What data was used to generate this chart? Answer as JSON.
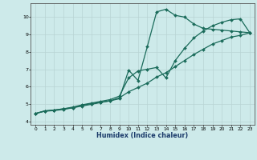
{
  "xlabel": "Humidex (Indice chaleur)",
  "bg_color": "#cdeaea",
  "grid_color_major": "#b8d4d4",
  "grid_color_minor": "#cde4e4",
  "line_color": "#1a6b5a",
  "xlim": [
    -0.5,
    23.5
  ],
  "ylim": [
    3.8,
    10.8
  ],
  "xticks": [
    0,
    1,
    2,
    3,
    4,
    5,
    6,
    7,
    8,
    9,
    10,
    11,
    12,
    13,
    14,
    15,
    16,
    17,
    18,
    19,
    20,
    21,
    22,
    23
  ],
  "yticks": [
    4,
    5,
    6,
    7,
    8,
    9,
    10
  ],
  "series1_x": [
    0,
    1,
    2,
    3,
    4,
    5,
    6,
    7,
    8,
    9,
    10,
    11,
    12,
    13,
    14,
    15,
    16,
    17,
    18,
    19,
    20,
    21,
    22,
    23
  ],
  "series1_y": [
    4.45,
    4.6,
    4.65,
    4.72,
    4.78,
    4.92,
    5.02,
    5.1,
    5.18,
    5.3,
    6.95,
    6.35,
    8.3,
    10.3,
    10.45,
    10.1,
    10.0,
    9.6,
    9.35,
    9.3,
    9.25,
    9.2,
    9.15,
    9.1
  ],
  "series2_x": [
    0,
    1,
    2,
    3,
    4,
    5,
    6,
    7,
    8,
    9,
    10,
    11,
    12,
    13,
    14,
    15,
    16,
    17,
    18,
    19,
    20,
    21,
    22,
    23
  ],
  "series2_y": [
    4.45,
    4.6,
    4.65,
    4.72,
    4.82,
    4.95,
    5.05,
    5.15,
    5.25,
    5.45,
    6.5,
    6.9,
    7.0,
    7.1,
    6.5,
    7.5,
    8.2,
    8.8,
    9.2,
    9.5,
    9.7,
    9.85,
    9.9,
    9.1
  ],
  "series3_x": [
    0,
    1,
    2,
    3,
    4,
    5,
    6,
    7,
    8,
    9,
    10,
    11,
    12,
    13,
    14,
    15,
    16,
    17,
    18,
    19,
    20,
    21,
    22,
    23
  ],
  "series3_y": [
    4.45,
    4.58,
    4.62,
    4.68,
    4.78,
    4.88,
    4.98,
    5.08,
    5.18,
    5.35,
    5.7,
    5.95,
    6.2,
    6.55,
    6.8,
    7.15,
    7.5,
    7.85,
    8.15,
    8.45,
    8.65,
    8.85,
    8.95,
    9.1
  ],
  "marker": "D",
  "marker_size": 2.0,
  "line_width": 0.9
}
